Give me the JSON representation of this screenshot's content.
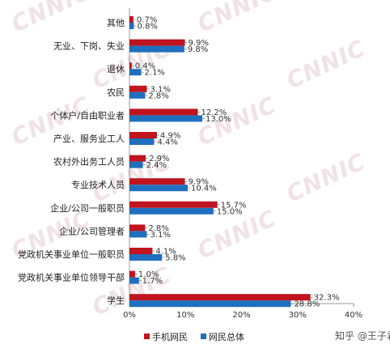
{
  "chart_data": {
    "type": "bar",
    "orientation": "horizontal",
    "categories": [
      "其他",
      "无业、下岗、失业",
      "退休",
      "农民",
      "个体户/自由职业者",
      "产业、服务业工人",
      "农村外出务工人员",
      "专业技术人员",
      "企业/公司一般职员",
      "企业/公司管理者",
      "党政机关事业单位一般职员",
      "党政机关事业单位领导干部",
      "学生"
    ],
    "series": [
      {
        "name": "手机网民",
        "color": "#c0141e",
        "values": [
          0.7,
          9.9,
          0.4,
          3.1,
          12.2,
          4.9,
          2.9,
          9.9,
          15.7,
          2.8,
          4.1,
          1.0,
          32.3
        ],
        "labels": [
          "0.7%",
          "9.9%",
          "0.4%",
          "3.1%",
          "12.2%",
          "4.9%",
          "2.9%",
          "9.9%",
          "15.7%",
          "2.8%",
          "4.1%",
          "1.0%",
          "32.3%"
        ]
      },
      {
        "name": "网民总体",
        "color": "#1f6fbf",
        "values": [
          0.8,
          9.8,
          2.1,
          2.8,
          13.0,
          4.4,
          2.4,
          10.4,
          15.0,
          3.1,
          5.8,
          1.7,
          28.8
        ],
        "labels": [
          "0.8%",
          "9.8%",
          "2.1%",
          "2.8%",
          "13.0%",
          "4.4%",
          "2.4%",
          "10.4%",
          "15.0%",
          "3.1%",
          "5.8%",
          "1.7%",
          "28.8%"
        ]
      }
    ],
    "xlim": [
      0,
      40
    ],
    "xticks": [
      "0%",
      "10%",
      "20%",
      "30%",
      "40%"
    ],
    "xtick_values": [
      0,
      10,
      20,
      30,
      40
    ],
    "legend_position": "bottom",
    "grid": false
  },
  "watermark": "CNNIC",
  "credit": "知乎 @王子君"
}
